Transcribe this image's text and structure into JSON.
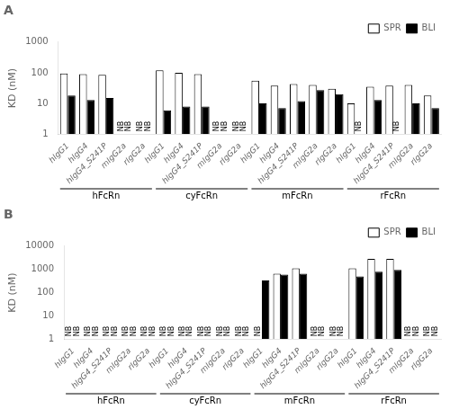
{
  "chart_data": [
    {
      "type": "bar",
      "title": "A",
      "ylabel": "KD (nM)",
      "log": "y",
      "grid": false,
      "legend": "upper right",
      "groups": [
        "hFcRn",
        "cyFcRn",
        "mFcRn",
        "rFcRn"
      ],
      "categories": [
        "hIgG1",
        "hIgG4",
        "hIgG4_S241P",
        "mIgG2a",
        "rIgG2a",
        "hIgG1",
        "hIgG4",
        "hIgG4_S241P",
        "mIgG2a",
        "rIgG2a",
        "hIgG1",
        "hIgG4",
        "hIgG4_S241P",
        "mIgG2a",
        "rIgG2a",
        "hIgG1",
        "hIgG4",
        "hIgG4_S241P",
        "mIgG2a",
        "rIgG2a"
      ],
      "series": [
        {
          "name": "SPR",
          "color": "#ffffff",
          "values": [
            95,
            90,
            85,
            null,
            null,
            120,
            100,
            90,
            null,
            null,
            55,
            38,
            43,
            40,
            30,
            10,
            35,
            38,
            40,
            18
          ]
        },
        {
          "name": "BLI",
          "color": "#000000",
          "values": [
            18,
            13,
            15,
            null,
            null,
            6,
            8,
            8,
            null,
            null,
            10,
            7,
            12,
            27,
            20,
            null,
            13,
            null,
            10,
            7
          ]
        }
      ],
      "null_label": "NB",
      "ylim": [
        1,
        1000
      ],
      "yticks": [
        1,
        10,
        100,
        1000
      ]
    },
    {
      "type": "bar",
      "title": "B",
      "ylabel": "KD (nM)",
      "log": "y",
      "grid": false,
      "legend": "upper right",
      "groups": [
        "hFcRn",
        "cyFcRn",
        "mFcRn",
        "rFcRn"
      ],
      "categories": [
        "hIgG1",
        "hIgG4",
        "hIgG4_S241P",
        "mIgG2a",
        "rIgG2a",
        "hIgG1",
        "hIgG4",
        "hIgG4_S241P",
        "mIgG2a",
        "rIgG2a",
        "hIgG1",
        "hIgG4",
        "hIgG4_S241P",
        "mIgG2a",
        "rIgG2a",
        "hIgG1",
        "hIgG4",
        "hIgG4_S241P",
        "mIgG2a",
        "rIgG2a"
      ],
      "series": [
        {
          "name": "SPR",
          "color": "#ffffff",
          "values": [
            null,
            null,
            null,
            null,
            null,
            null,
            null,
            null,
            null,
            null,
            null,
            650,
            1100,
            null,
            null,
            1100,
            2800,
            2800,
            null,
            null
          ]
        },
        {
          "name": "BLI",
          "color": "#000000",
          "values": [
            null,
            null,
            null,
            null,
            null,
            null,
            null,
            null,
            null,
            null,
            330,
            600,
            650,
            null,
            null,
            500,
            800,
            950,
            null,
            null
          ]
        }
      ],
      "null_label": "NB",
      "ylim": [
        1,
        10000
      ],
      "yticks": [
        1,
        10,
        100,
        1000,
        10000
      ]
    }
  ]
}
